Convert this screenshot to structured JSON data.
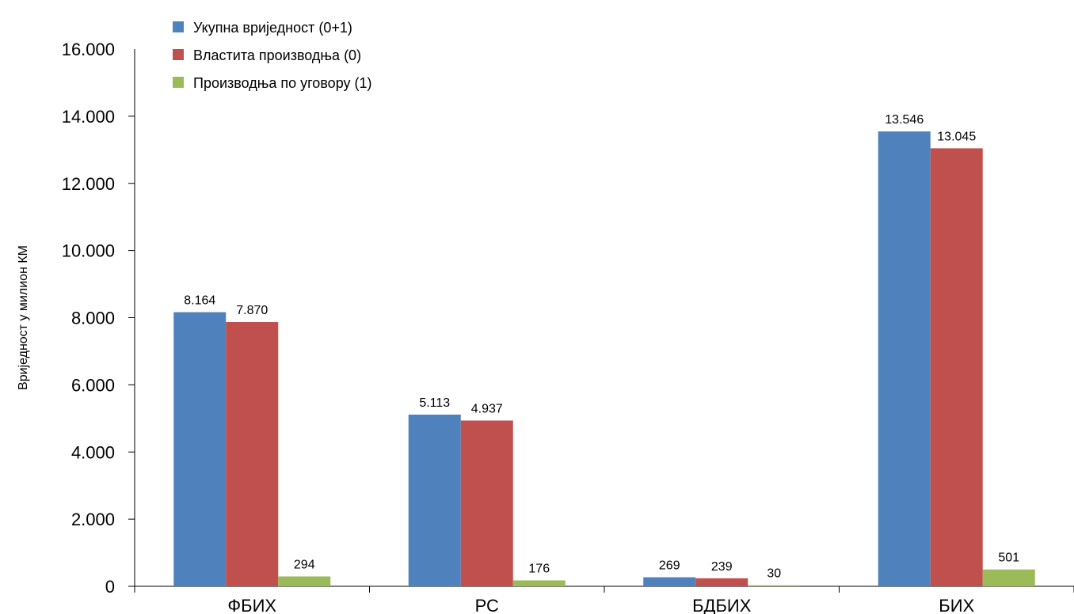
{
  "chart_data": {
    "type": "bar",
    "title": "",
    "xlabel": "",
    "ylabel": "Вриједност у милион КМ",
    "ylim": [
      0,
      16000
    ],
    "yticks": [
      0,
      2000,
      4000,
      6000,
      8000,
      10000,
      12000,
      14000,
      16000
    ],
    "ytick_labels": [
      "0",
      "2.000",
      "4.000",
      "6.000",
      "8.000",
      "10.000",
      "12.000",
      "14.000",
      "16.000"
    ],
    "categories": [
      "ФБИХ",
      "РС",
      "БДБИХ",
      "БИХ"
    ],
    "legend_position": "top-left",
    "grid": false,
    "series": [
      {
        "name": "Укупна вриједност (0+1)",
        "color": "#4f81bd",
        "values": [
          8164,
          5113,
          269,
          13546
        ],
        "labels": [
          "8.164",
          "5.113",
          "269",
          "13.546"
        ]
      },
      {
        "name": "Властита производња (0)",
        "color": "#c0504d",
        "values": [
          7870,
          4937,
          239,
          13045
        ],
        "labels": [
          "7.870",
          "4.937",
          "239",
          "13.045"
        ]
      },
      {
        "name": "Производња по уговору (1)",
        "color": "#9bbb59",
        "values": [
          294,
          176,
          30,
          501
        ],
        "labels": [
          "294",
          "176",
          "30",
          "501"
        ]
      }
    ]
  }
}
